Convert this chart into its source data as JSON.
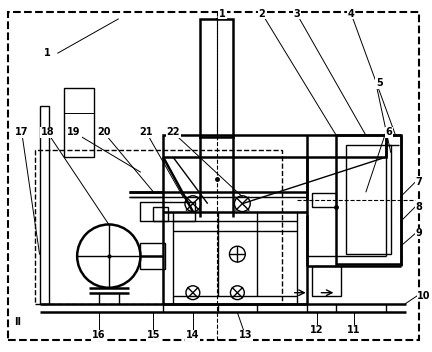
{
  "bg_color": "#ffffff",
  "line_color": "#000000",
  "figsize": [
    4.32,
    3.52
  ],
  "dpi": 100
}
